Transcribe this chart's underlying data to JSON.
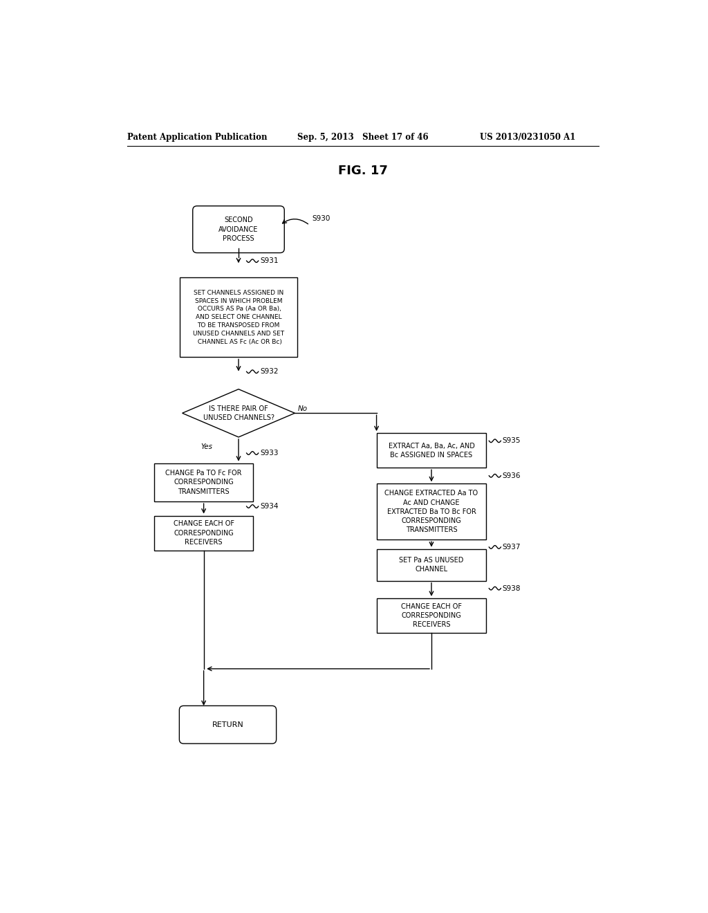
{
  "title": "FIG. 17",
  "header_left": "Patent Application Publication",
  "header_mid": "Sep. 5, 2013   Sheet 17 of 46",
  "header_right": "US 2013/0231050 A1",
  "bg_color": "#ffffff",
  "line_color": "#000000",
  "text_color": "#000000",
  "font_size": 7.0,
  "title_font_size": 13,
  "header_font_size": 8.5
}
